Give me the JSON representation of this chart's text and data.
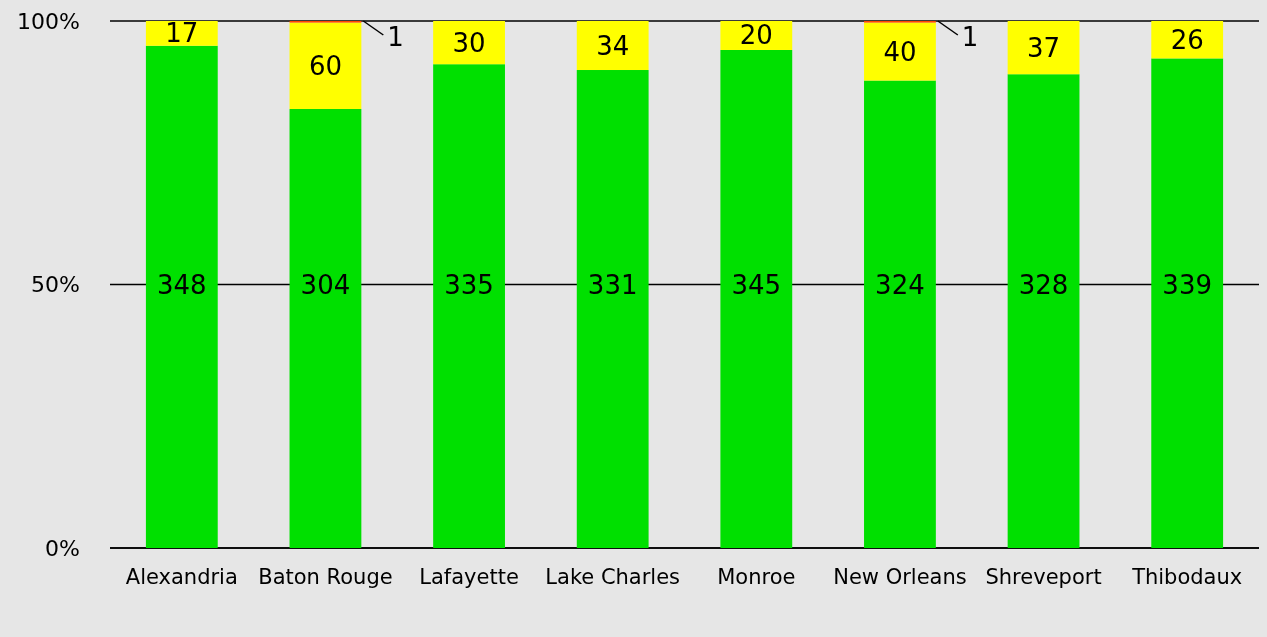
{
  "chart_data": {
    "type": "bar",
    "stacked": true,
    "categories": [
      "Alexandria",
      "Baton Rouge",
      "Lafayette",
      "Lake Charles",
      "Monroe",
      "New Orleans",
      "Shreveport",
      "Thibodaux"
    ],
    "series": [
      {
        "color": "#00e000",
        "values": [
          95.3,
          83.3,
          91.8,
          90.7,
          94.5,
          88.7,
          89.9,
          92.9
        ]
      },
      {
        "color": "#ffff00",
        "values": [
          4.7,
          16.4,
          8.2,
          9.3,
          5.5,
          11.0,
          10.1,
          7.1
        ]
      },
      {
        "color": "#ff4500",
        "values": [
          null,
          0.3,
          null,
          null,
          null,
          0.3,
          null,
          null
        ]
      }
    ],
    "ylim": [
      0,
      100
    ],
    "yticks": [
      {
        "value": 0,
        "label": "0%"
      },
      {
        "value": 50,
        "label": "50%"
      },
      {
        "value": 100,
        "label": "100%"
      }
    ],
    "grid": "y",
    "annotations": [
      "348",
      "304",
      "335",
      "331",
      "345",
      "324",
      "328",
      "339",
      {
        "text": "17",
        "x": "Alexandria",
        "y": 100
      },
      {
        "text": "60",
        "x": "Baton Rouge",
        "y": 99.7
      },
      {
        "text": "30",
        "x": "Lafayette",
        "y": 100
      },
      {
        "text": "34",
        "x": "Lake Charles",
        "y": 100
      },
      {
        "text": "20",
        "x": "Monroe",
        "y": 100
      },
      {
        "text": "40",
        "x": "New Orleans",
        "y": 99.7
      },
      {
        "text": "37",
        "x": "Shreveport",
        "y": 100
      },
      {
        "text": "26",
        "x": "Thibodaux",
        "y": 100
      },
      {
        "text": "1",
        "x": "Baton Rouge",
        "y": 100
      },
      {
        "text": "1",
        "x": "New Orleans",
        "y": 100
      }
    ]
  }
}
